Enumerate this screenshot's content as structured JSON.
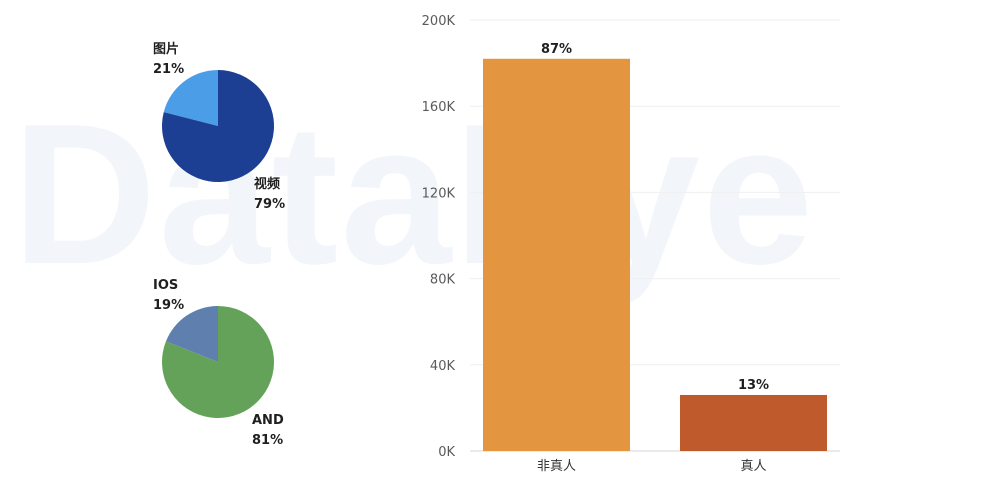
{
  "watermark": "DataEye",
  "colors": {
    "pie1": [
      "#4a9de6",
      "#1c3f93"
    ],
    "pie2": [
      "#5f7fae",
      "#64a25a"
    ],
    "bars": [
      "#e3953f",
      "#bf5a2c"
    ]
  },
  "chart_data": [
    {
      "type": "pie",
      "slices": [
        {
          "label": "图片",
          "pct_label": "21%",
          "value": 21
        },
        {
          "label": "视频",
          "pct_label": "79%",
          "value": 79
        }
      ]
    },
    {
      "type": "pie",
      "slices": [
        {
          "label": "IOS",
          "pct_label": "19%",
          "value": 19
        },
        {
          "label": "AND",
          "pct_label": "81%",
          "value": 81
        }
      ]
    },
    {
      "type": "bar",
      "categories": [
        "非真人",
        "真人"
      ],
      "values": [
        182000,
        26000
      ],
      "data_labels": [
        "87%",
        "13%"
      ],
      "ylim": [
        0,
        200000
      ],
      "yticks": [
        0,
        40000,
        80000,
        120000,
        160000,
        200000
      ],
      "ytick_labels": [
        "0K",
        "40K",
        "80K",
        "120K",
        "160K",
        "200K"
      ],
      "xlabel": "",
      "ylabel": "",
      "grid": true
    }
  ]
}
